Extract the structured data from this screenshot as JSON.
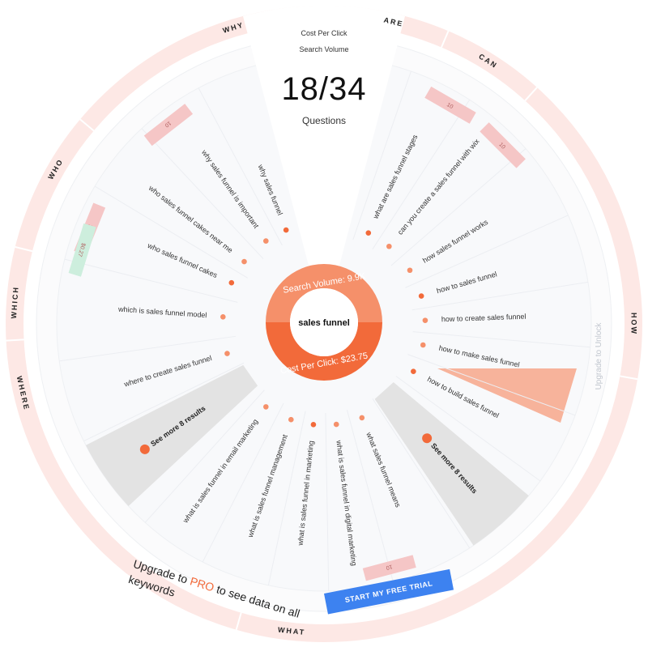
{
  "header": {
    "metric_1": "Cost Per Click",
    "metric_2": "Search Volume",
    "count": "18/34",
    "count_label": "Questions"
  },
  "center": {
    "keyword": "sales funnel",
    "search_volume_label": "Search Volume: 9.9K",
    "cpc_label": "Cost Per Click: $23.75"
  },
  "categories": [
    "WHY",
    "ARE",
    "CAN",
    "HOW",
    "WHAT",
    "WHERE",
    "WHICH",
    "WHO"
  ],
  "questions": [
    {
      "text": "why sales funnel",
      "angle": -112
    },
    {
      "text": "why sales funnel is important",
      "angle": -125
    },
    {
      "text": "who sales funnel cakes near me",
      "angle": -142
    },
    {
      "text": "who sales funnel cakes",
      "angle": -156
    },
    {
      "text": "which is sales funnel model",
      "angle": -176
    },
    {
      "text": "where to create sales funnel",
      "angle": 163
    },
    {
      "text": "what are sales funnel stages",
      "angle": -64
    },
    {
      "text": "can you create a sales funnel with wix",
      "angle": -50
    },
    {
      "text": "how sales funnel works",
      "angle": -32
    },
    {
      "text": "how to sales funnel",
      "angle": -16
    },
    {
      "text": "how to create sales funnel",
      "angle": -2
    },
    {
      "text": "how to make sales funnel",
      "angle": 12
    },
    {
      "text": "how to build sales funnel",
      "angle": 28
    },
    {
      "text": "what is sales funnel in email marketing",
      "angle": 125
    },
    {
      "text": "what is sales funnel management",
      "angle": 109
    },
    {
      "text": "what is sales funnel in marketing",
      "angle": 96
    },
    {
      "text": "what is sales funnel in digital marketing",
      "angle": 83
    },
    {
      "text": "what sales funnel means",
      "angle": 68
    }
  ],
  "badges": [
    {
      "text": "10",
      "angle": -128,
      "color": "#f5c6c6"
    },
    {
      "text": "10",
      "angle": -60,
      "color": "#f5c6c6"
    },
    {
      "text": "10",
      "angle": -45,
      "color": "#f5c6c6"
    },
    {
      "text": "170",
      "angle": -158,
      "color": "#f5c6c6"
    },
    {
      "text": "$0.27",
      "angle": -163,
      "color": "#cdeedd"
    },
    {
      "text": "10",
      "angle": 75,
      "color": "#f5c6c6"
    }
  ],
  "see_more": [
    {
      "text": "See more 8 results",
      "angle": 145
    },
    {
      "text": "See more 8 results",
      "angle": 48
    }
  ],
  "upgrade": {
    "vertical": "Upgrade to Unlock",
    "line_prefix": "Upgrade to ",
    "line_pro": "PRO",
    "line_suffix": " to see data on all keywords",
    "button": "START MY FREE TRIAL"
  },
  "colors": {
    "orange": "#f26a3a",
    "orange_light": "#f5906a",
    "ring_bg": "#fde8e5",
    "panel": "#f8f9fb",
    "grey_sector": "#e3e3e3",
    "cta": "#3d82f0"
  }
}
